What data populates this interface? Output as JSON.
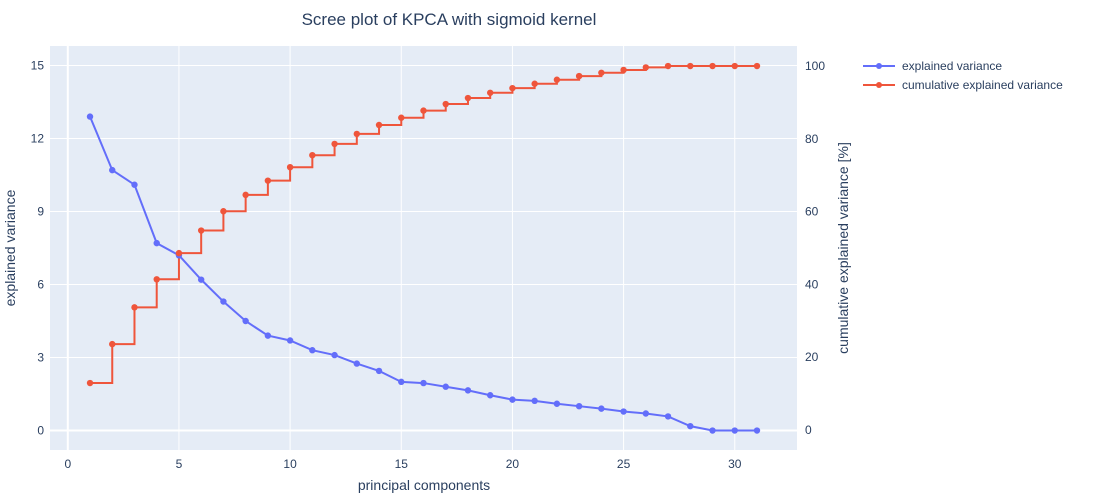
{
  "chart_data": {
    "type": "line",
    "title": "Scree plot of KPCA with sigmoid kernel",
    "xlabel": "principal components",
    "ylabel": "explained variance",
    "y2label": "cumulative explained variance [%]",
    "xlim": [
      -0.8,
      32.8
    ],
    "ylim": [
      -0.8,
      15.8
    ],
    "y2lim": [
      -5.5,
      105.5
    ],
    "xticks": [
      0,
      5,
      10,
      15,
      20,
      25,
      30
    ],
    "yticks": [
      0,
      3,
      6,
      9,
      12,
      15
    ],
    "y2ticks": [
      0,
      20,
      40,
      60,
      80,
      100
    ],
    "grid": true,
    "legend_position": "top-right outside",
    "x": [
      1,
      2,
      3,
      4,
      5,
      6,
      7,
      8,
      9,
      10,
      11,
      12,
      13,
      14,
      15,
      16,
      17,
      18,
      19,
      20,
      21,
      22,
      23,
      24,
      25,
      26,
      27,
      28,
      29,
      30,
      31
    ],
    "series": [
      {
        "name": "explained variance",
        "axis": "y",
        "color": "#636efa",
        "line_shape": "linear",
        "values": [
          12.9,
          10.7,
          10.1,
          7.7,
          7.2,
          6.2,
          5.3,
          4.5,
          3.9,
          3.7,
          3.3,
          3.1,
          2.75,
          2.45,
          2.0,
          1.95,
          1.8,
          1.65,
          1.45,
          1.27,
          1.22,
          1.1,
          1.0,
          0.9,
          0.78,
          0.7,
          0.58,
          0.18,
          0.0,
          0.0,
          0.0
        ]
      },
      {
        "name": "cumulative explained variance",
        "axis": "y2",
        "color": "#ef553b",
        "line_shape": "step-after",
        "values": [
          12.9,
          23.6,
          33.7,
          41.4,
          48.6,
          54.8,
          60.1,
          64.6,
          68.5,
          72.2,
          75.5,
          78.6,
          81.35,
          83.8,
          85.8,
          87.75,
          89.55,
          91.2,
          92.65,
          93.92,
          95.14,
          96.24,
          97.24,
          98.14,
          98.92,
          99.62,
          100.0,
          100.0,
          100.0,
          100.0,
          100.0
        ]
      }
    ]
  }
}
